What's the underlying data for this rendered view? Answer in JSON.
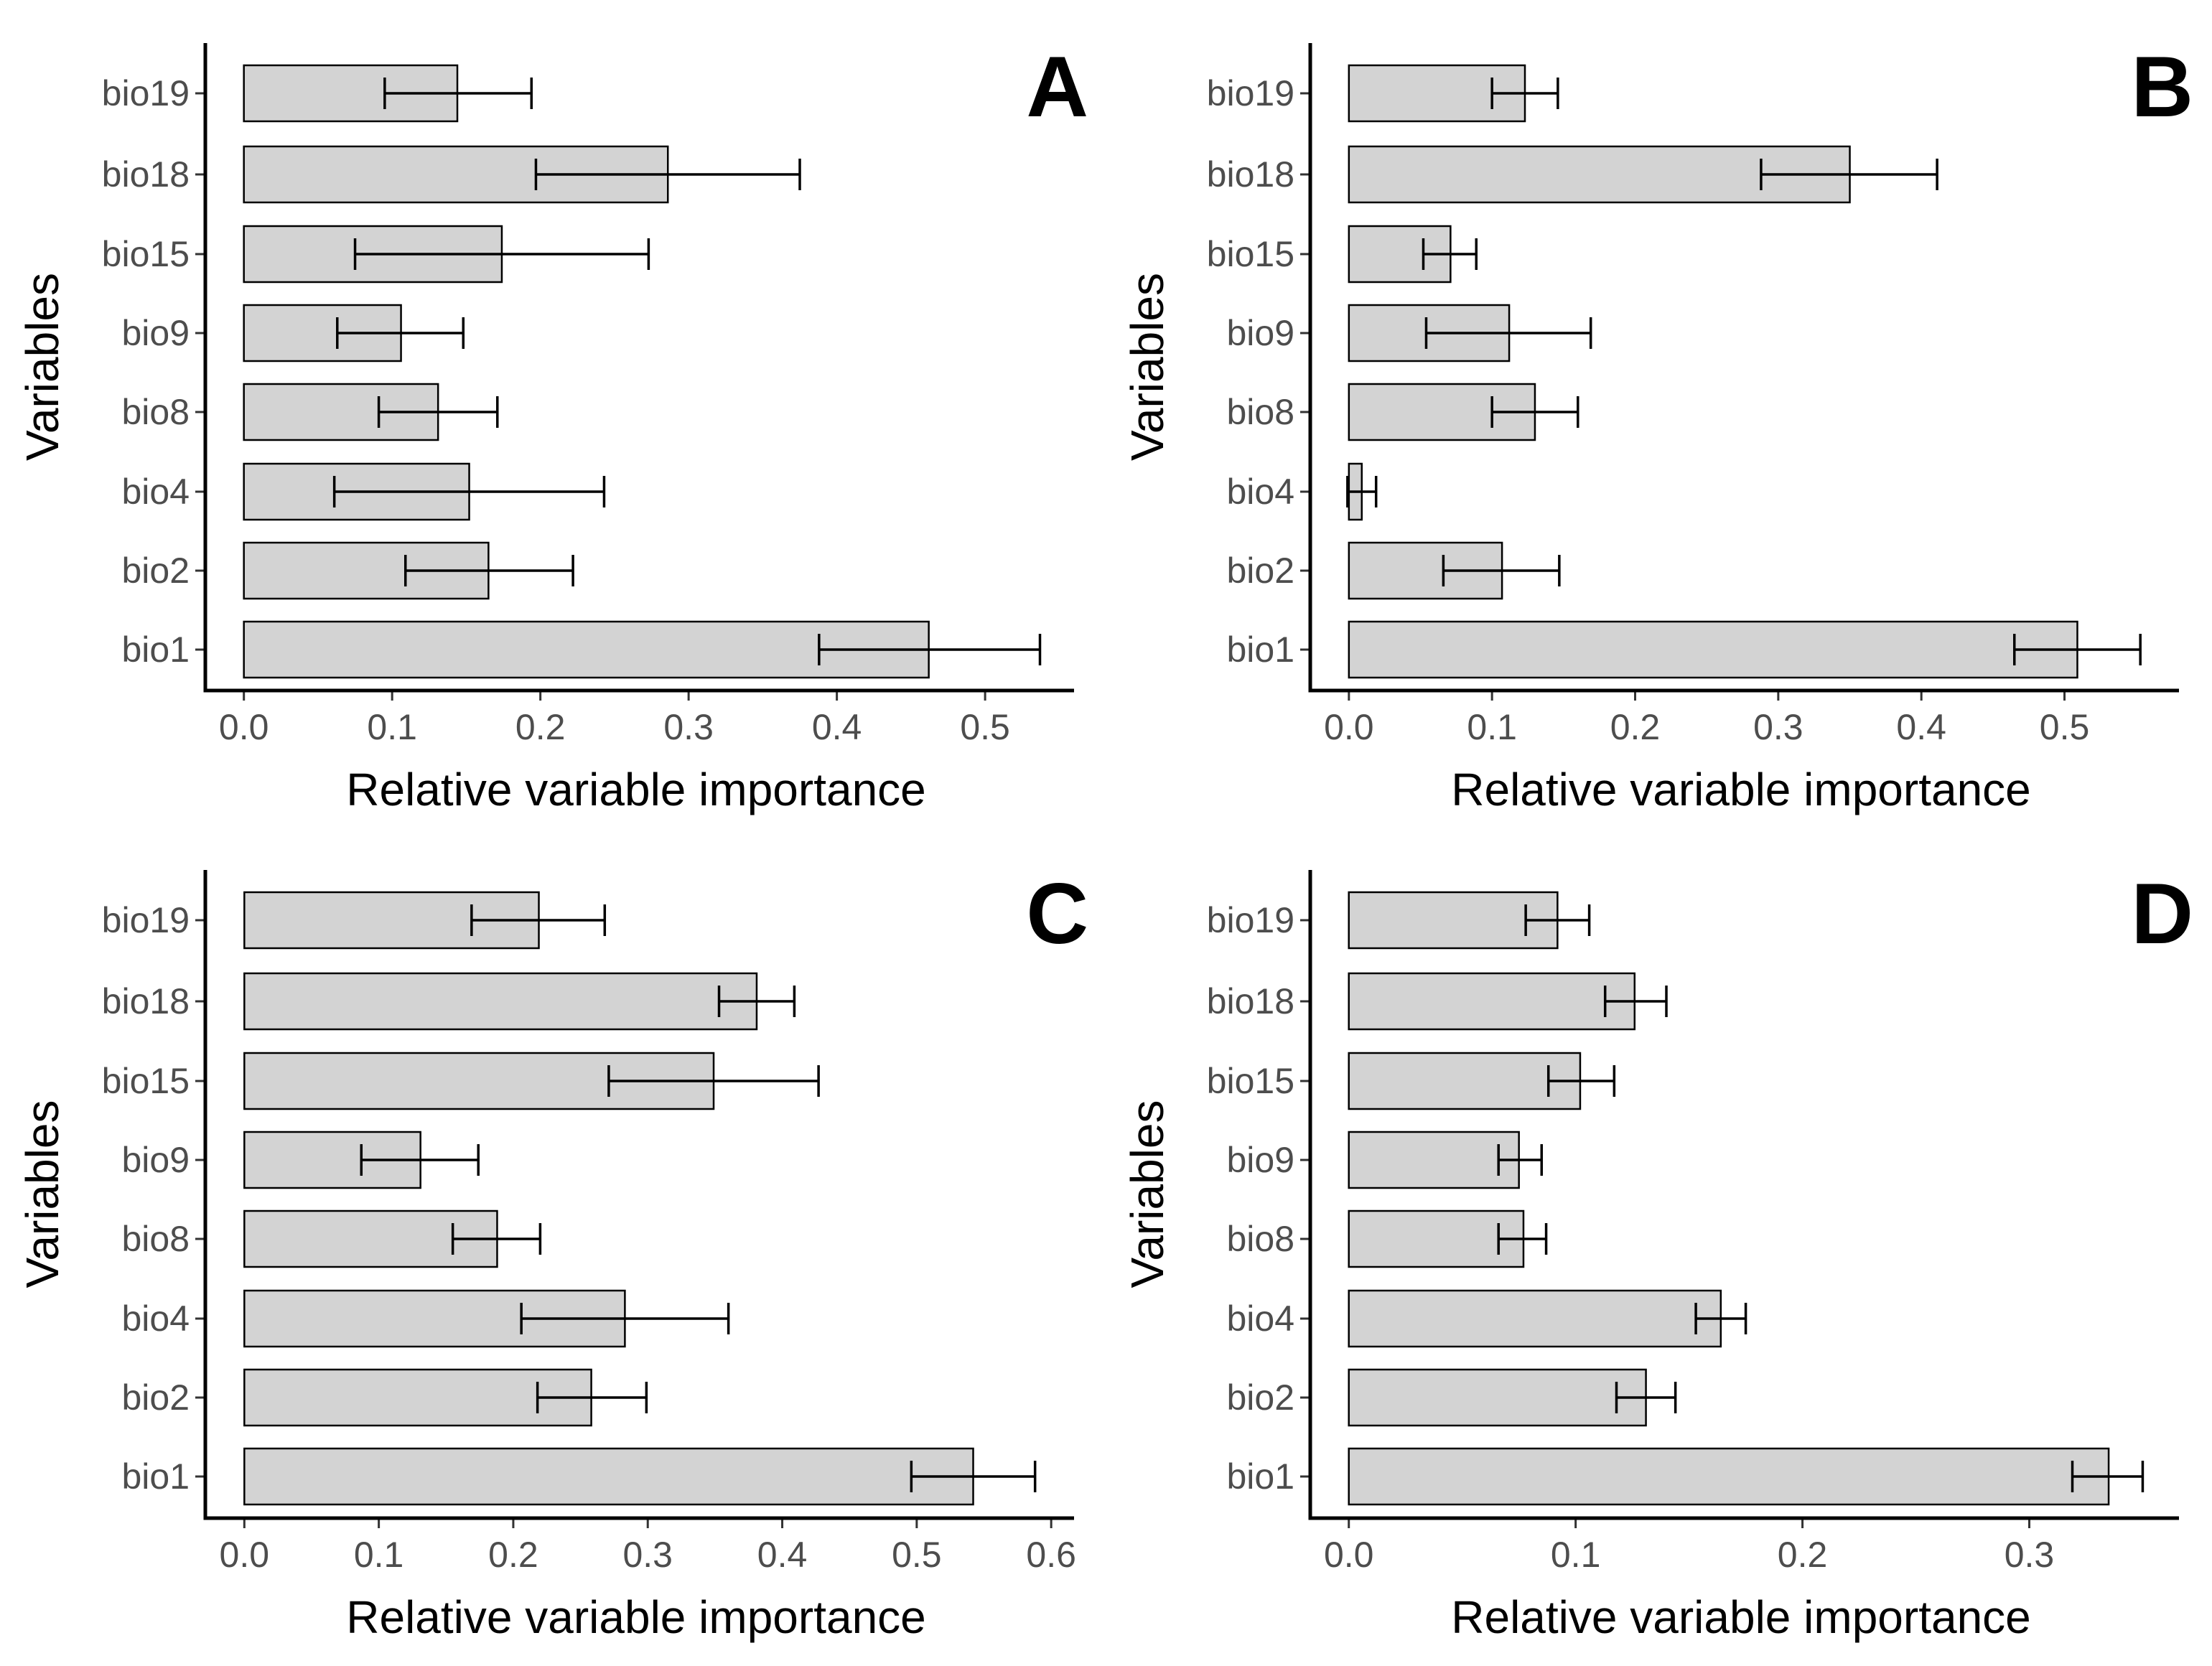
{
  "chart_data": [
    {
      "type": "bar",
      "orientation": "horizontal",
      "panel": "A",
      "categories": [
        "bio1",
        "bio2",
        "bio4",
        "bio8",
        "bio9",
        "bio15",
        "bio18",
        "bio19"
      ],
      "values": [
        0.462,
        0.165,
        0.152,
        0.131,
        0.106,
        0.174,
        0.286,
        0.144
      ],
      "error_low": [
        0.388,
        0.109,
        0.061,
        0.091,
        0.063,
        0.075,
        0.197,
        0.095
      ],
      "error_high": [
        0.537,
        0.222,
        0.243,
        0.171,
        0.148,
        0.273,
        0.375,
        0.194
      ],
      "xlabel": "Relative variable importance",
      "ylabel": "Variables",
      "xlim": [
        -0.026,
        0.56
      ],
      "xticks": [
        0.0,
        0.1,
        0.2,
        0.3,
        0.4,
        0.5
      ],
      "xtick_labels": [
        "0.0",
        "0.1",
        "0.2",
        "0.3",
        "0.4",
        "0.5"
      ],
      "grid": false
    },
    {
      "type": "bar",
      "orientation": "horizontal",
      "panel": "B",
      "categories": [
        "bio1",
        "bio2",
        "bio4",
        "bio8",
        "bio9",
        "bio15",
        "bio18",
        "bio19"
      ],
      "values": [
        0.509,
        0.107,
        0.009,
        0.13,
        0.112,
        0.071,
        0.35,
        0.123
      ],
      "error_low": [
        0.465,
        0.066,
        -0.001,
        0.1,
        0.054,
        0.052,
        0.288,
        0.1
      ],
      "error_high": [
        0.553,
        0.147,
        0.019,
        0.16,
        0.169,
        0.089,
        0.411,
        0.146
      ],
      "xlabel": "Relative variable importance",
      "ylabel": "Variables",
      "xlim": [
        -0.027,
        0.58
      ],
      "xticks": [
        0.0,
        0.1,
        0.2,
        0.3,
        0.4,
        0.5
      ],
      "xtick_labels": [
        "0.0",
        "0.1",
        "0.2",
        "0.3",
        "0.4",
        "0.5"
      ],
      "grid": false
    },
    {
      "type": "bar",
      "orientation": "horizontal",
      "panel": "C",
      "categories": [
        "bio1",
        "bio2",
        "bio4",
        "bio8",
        "bio9",
        "bio15",
        "bio18",
        "bio19"
      ],
      "values": [
        0.542,
        0.258,
        0.283,
        0.188,
        0.131,
        0.349,
        0.381,
        0.219
      ],
      "error_low": [
        0.496,
        0.218,
        0.206,
        0.155,
        0.087,
        0.271,
        0.353,
        0.169
      ],
      "error_high": [
        0.588,
        0.299,
        0.36,
        0.22,
        0.174,
        0.427,
        0.409,
        0.268
      ],
      "xlabel": "Relative variable importance",
      "ylabel": "Variables",
      "xlim": [
        -0.029,
        0.617
      ],
      "xticks": [
        0.0,
        0.1,
        0.2,
        0.3,
        0.4,
        0.5,
        0.6
      ],
      "xtick_labels": [
        "0.0",
        "0.1",
        "0.2",
        "0.3",
        "0.4",
        "0.5",
        "0.6"
      ],
      "grid": false
    },
    {
      "type": "bar",
      "orientation": "horizontal",
      "panel": "D",
      "categories": [
        "bio1",
        "bio2",
        "bio4",
        "bio8",
        "bio9",
        "bio15",
        "bio18",
        "bio19"
      ],
      "values": [
        0.335,
        0.131,
        0.164,
        0.077,
        0.075,
        0.102,
        0.126,
        0.092
      ],
      "error_low": [
        0.319,
        0.118,
        0.153,
        0.066,
        0.066,
        0.088,
        0.113,
        0.078
      ],
      "error_high": [
        0.35,
        0.144,
        0.175,
        0.087,
        0.085,
        0.117,
        0.14,
        0.106
      ],
      "xlabel": "Relative variable importance",
      "ylabel": "Variables",
      "xlim": [
        -0.017,
        0.366
      ],
      "xticks": [
        0.0,
        0.1,
        0.2,
        0.3
      ],
      "xtick_labels": [
        "0.0",
        "0.1",
        "0.2",
        "0.3"
      ],
      "grid": false
    }
  ]
}
